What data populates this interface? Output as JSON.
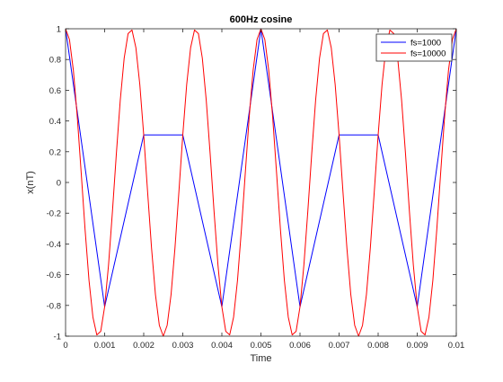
{
  "chart_data": {
    "type": "line",
    "title": "600Hz cosine",
    "xlabel": "Time",
    "ylabel": "x(nT)",
    "xlim": [
      0,
      0.01
    ],
    "ylim": [
      -1,
      1
    ],
    "xticks": [
      "0",
      "0.001",
      "0.002",
      "0.003",
      "0.004",
      "0.005",
      "0.006",
      "0.007",
      "0.008",
      "0.009",
      "0.01"
    ],
    "yticks": [
      "-1",
      "-0.8",
      "-0.6",
      "-0.4",
      "-0.2",
      "0",
      "0.2",
      "0.4",
      "0.6",
      "0.8",
      "1"
    ],
    "grid": false,
    "legend_position": "top-right",
    "series": [
      {
        "name": "fs=1000",
        "color": "#0000ff",
        "x": [
          0,
          0.001,
          0.002,
          0.003,
          0.004,
          0.005,
          0.006,
          0.007,
          0.008,
          0.009,
          0.01
        ],
        "y": [
          1,
          -0.809,
          0.309,
          0.309,
          -0.809,
          1,
          -0.809,
          0.309,
          0.309,
          -0.809,
          1
        ]
      },
      {
        "name": "fs=10000",
        "color": "#ff0000",
        "frequency_hz": 600,
        "sample_rate_hz": 10000,
        "x_start": 0,
        "x_end": 0.01
      }
    ]
  }
}
